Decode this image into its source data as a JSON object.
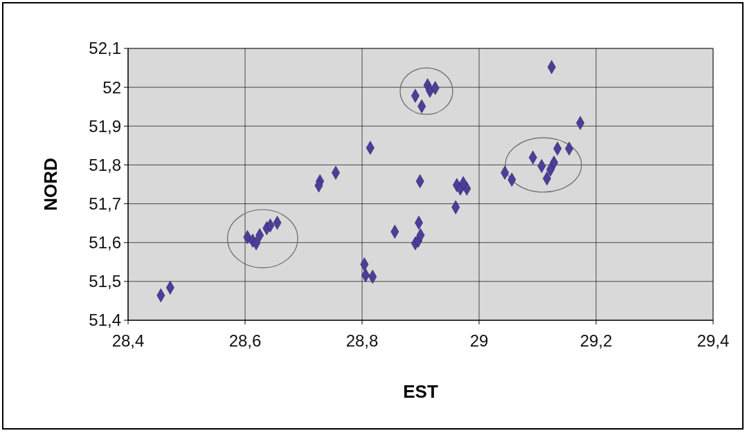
{
  "chart_data": {
    "type": "scatter",
    "xlabel": "EST",
    "ylabel": "NORD",
    "marker": "diamond",
    "grid": true,
    "xlim": [
      28.4,
      29.4
    ],
    "ylim": [
      51.4,
      52.1
    ],
    "xticks": [
      {
        "value": 28.4,
        "label": "28,4"
      },
      {
        "value": 28.6,
        "label": "28,6"
      },
      {
        "value": 28.8,
        "label": "28,8"
      },
      29,
      {
        "value": 29.2,
        "label": "29,2"
      },
      {
        "value": 29.4,
        "label": "29,4"
      }
    ],
    "yticks": [
      {
        "value": 51.4,
        "label": "51,4"
      },
      {
        "value": 51.5,
        "label": "51,5"
      },
      {
        "value": 51.6,
        "label": "51,6"
      },
      {
        "value": 51.7,
        "label": "51,7"
      },
      {
        "value": 51.8,
        "label": "51,8"
      },
      {
        "value": 51.9,
        "label": "51,9"
      },
      52,
      {
        "value": 52.1,
        "label": "52,1"
      }
    ],
    "series": [
      {
        "color": "#4b3f9a",
        "x": [
          28.456,
          28.472,
          28.604,
          28.613,
          28.619,
          28.625,
          28.637,
          28.643,
          28.655,
          28.728,
          28.726,
          28.755,
          28.814,
          28.804,
          28.806,
          28.818,
          28.856,
          28.891,
          28.896,
          28.897,
          28.9,
          28.899,
          28.891,
          28.902,
          28.912,
          28.916,
          28.925,
          29.124,
          28.962,
          28.968,
          28.96,
          28.979,
          28.973,
          29.044,
          29.056,
          29.092,
          29.107,
          29.116,
          29.128,
          29.134,
          29.154,
          29.173,
          29.122
        ],
        "values": [
          51.464,
          51.484,
          51.614,
          51.605,
          51.598,
          51.619,
          51.637,
          51.644,
          51.651,
          51.758,
          51.747,
          51.78,
          51.844,
          51.544,
          51.516,
          51.512,
          51.628,
          51.598,
          51.605,
          51.651,
          51.619,
          51.758,
          51.978,
          51.951,
          52.005,
          51.991,
          51.998,
          52.052,
          51.748,
          51.739,
          51.691,
          51.739,
          51.753,
          51.78,
          51.762,
          51.819,
          51.797,
          51.765,
          51.806,
          51.842,
          51.842,
          51.908,
          51.788
        ]
      }
    ]
  }
}
